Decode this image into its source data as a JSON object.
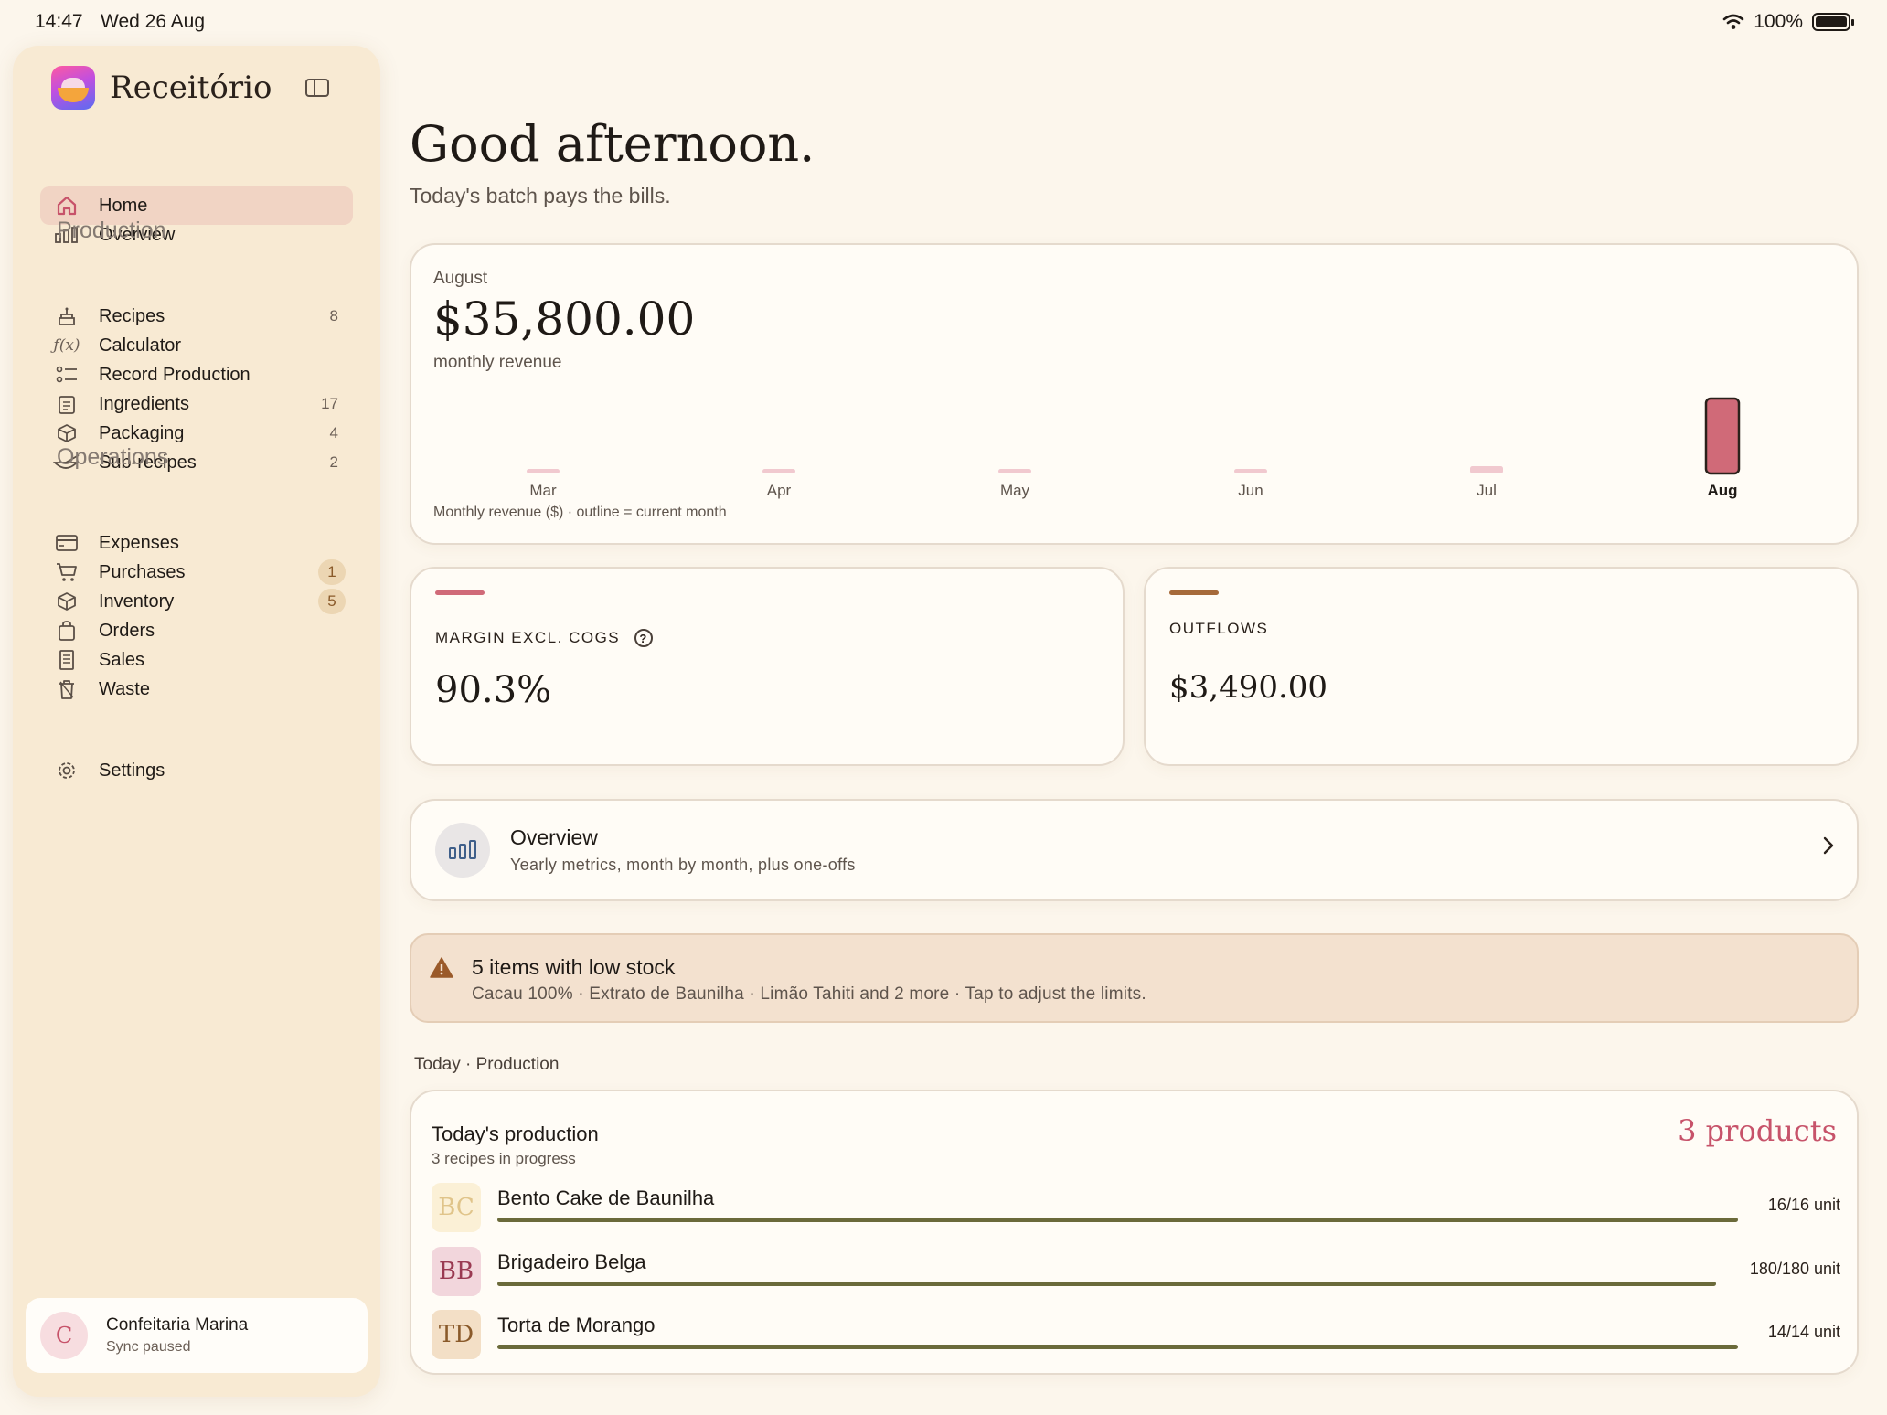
{
  "status_bar": {
    "time": "14:47",
    "date": "Wed 26 Aug",
    "battery": "100%"
  },
  "app": {
    "name": "Receitório"
  },
  "sidebar": {
    "top_items": [
      {
        "label": "Home",
        "icon": "home-icon",
        "active": true
      },
      {
        "label": "Overview",
        "icon": "bar-chart-icon"
      }
    ],
    "production_title": "Production",
    "production_items": [
      {
        "label": "Recipes",
        "icon": "cake-icon",
        "count": "8"
      },
      {
        "label": "Calculator",
        "icon": "function-icon"
      },
      {
        "label": "Record Production",
        "icon": "checklist-icon"
      },
      {
        "label": "Ingredients",
        "icon": "clipboard-icon",
        "count": "17"
      },
      {
        "label": "Packaging",
        "icon": "box-icon",
        "count": "4"
      },
      {
        "label": "Sub-recipes",
        "icon": "whisk-bowl-icon",
        "count": "2"
      }
    ],
    "operations_title": "Operations",
    "operations_items": [
      {
        "label": "Expenses",
        "icon": "credit-card-icon"
      },
      {
        "label": "Purchases",
        "icon": "cart-icon",
        "badge": "1"
      },
      {
        "label": "Inventory",
        "icon": "box-icon",
        "badge": "5"
      },
      {
        "label": "Orders",
        "icon": "bag-icon"
      },
      {
        "label": "Sales",
        "icon": "receipt-icon"
      },
      {
        "label": "Waste",
        "icon": "trash-icon"
      }
    ],
    "settings_label": "Settings",
    "account": {
      "initial": "C",
      "name": "Confeitaria Marina",
      "status": "Sync paused"
    }
  },
  "main": {
    "greeting": "Good afternoon.",
    "tagline": "Today's batch pays the bills.",
    "revenue": {
      "month": "August",
      "value": "$35,800.00",
      "label": "monthly revenue",
      "caption": "Monthly revenue ($) · outline = current month"
    },
    "margin": {
      "label": "MARGIN EXCL. COGS",
      "value": "90.3%",
      "accent": "#d06a78"
    },
    "outflows": {
      "label": "OUTFLOWS",
      "value": "$3,490.00",
      "accent": "#a66a3a"
    },
    "overview_link": {
      "title": "Overview",
      "subtitle": "Yearly metrics, month by month, plus one-offs"
    },
    "alert": {
      "title": "5 items with low stock",
      "message": "Cacau 100% · Extrato de Baunilha · Limão Tahiti and 2 more · Tap to adjust the limits."
    },
    "section_label": "Today · Production",
    "production": {
      "title": "Today's production",
      "subtitle": "3 recipes in progress",
      "count_label": "3 products",
      "items": [
        {
          "initials": "BC",
          "name": "Bento Cake de Baunilha",
          "qty": "16/16 unit",
          "progress": 1.0,
          "badge_bg": "#fbf0d6",
          "badge_fg": "#e0c48a"
        },
        {
          "initials": "BB",
          "name": "Brigadeiro Belga",
          "qty": "180/180 unit",
          "progress": 1.0,
          "badge_bg": "#f2d6dc",
          "badge_fg": "#9a3a52"
        },
        {
          "initials": "TD",
          "name": "Torta de Morango",
          "qty": "14/14 unit",
          "progress": 1.0,
          "badge_bg": "#f3dfc6",
          "badge_fg": "#8a5a2a"
        }
      ]
    }
  },
  "chart_data": {
    "type": "bar",
    "categories": [
      "Mar",
      "Apr",
      "May",
      "Jun",
      "Jul",
      "Aug"
    ],
    "values": [
      0,
      0,
      0,
      0,
      3500,
      35800
    ],
    "current_index": 5,
    "ylim": [
      0,
      35800
    ],
    "colors": {
      "bar": "#f1c9cf",
      "current": "#d06a78",
      "outline": "#2a211b"
    }
  }
}
